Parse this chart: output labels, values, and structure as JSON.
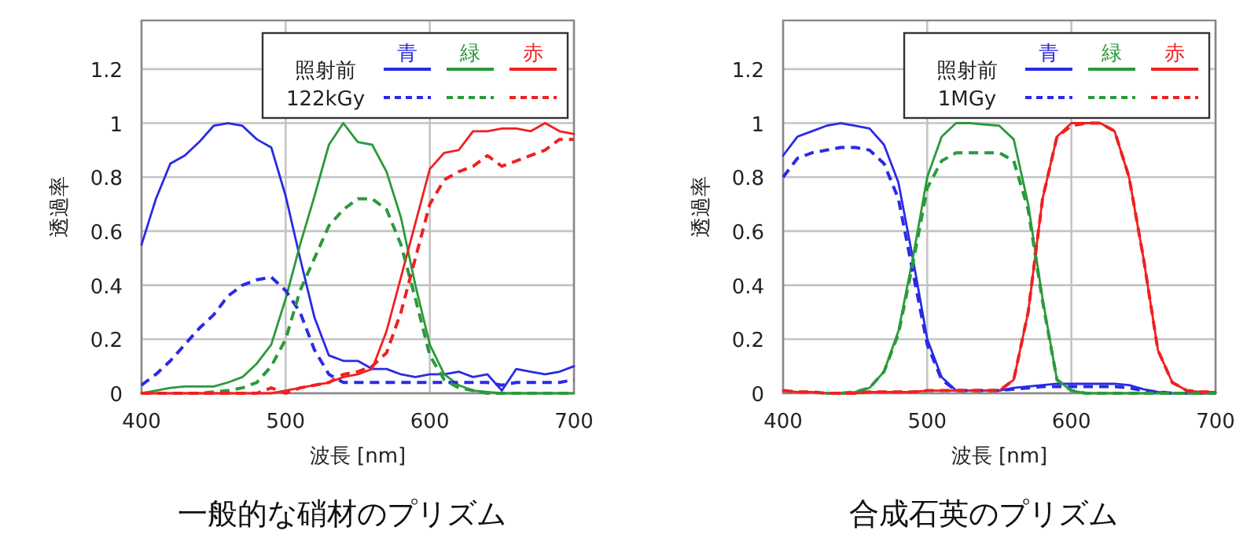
{
  "chart_data": [
    {
      "type": "line",
      "title": "一般的な硝材のプリズム",
      "xlabel": "波長 [nm]",
      "ylabel": "透過率",
      "xlim": [
        400,
        700
      ],
      "ylim": [
        0,
        1.38
      ],
      "xticks": [
        400,
        500,
        600,
        700
      ],
      "yticks": [
        0,
        0.2,
        0.4,
        0.6,
        0.8,
        1,
        1.2
      ],
      "grid": true,
      "legend": "top right",
      "annotations": [
        "照射前",
        "122kGy"
      ],
      "x": [
        400,
        410,
        420,
        430,
        440,
        450,
        460,
        470,
        480,
        490,
        500,
        510,
        520,
        530,
        540,
        550,
        560,
        570,
        580,
        590,
        600,
        610,
        620,
        630,
        640,
        650,
        660,
        670,
        680,
        690,
        700
      ],
      "series": [
        {
          "name": "青",
          "color": "#2a2ae6",
          "line_style": "solid",
          "values": [
            0.55,
            0.72,
            0.85,
            0.88,
            0.93,
            0.99,
            1.0,
            0.99,
            0.94,
            0.91,
            0.73,
            0.5,
            0.28,
            0.14,
            0.12,
            0.12,
            0.09,
            0.09,
            0.07,
            0.06,
            0.07,
            0.07,
            0.08,
            0.06,
            0.07,
            0.01,
            0.09,
            0.08,
            0.07,
            0.08,
            0.1
          ]
        },
        {
          "name": "緑",
          "color": "#2a9a3a",
          "line_style": "solid",
          "values": [
            0,
            0.01,
            0.02,
            0.025,
            0.025,
            0.025,
            0.04,
            0.06,
            0.11,
            0.18,
            0.35,
            0.55,
            0.73,
            0.92,
            1.0,
            0.93,
            0.92,
            0.82,
            0.65,
            0.4,
            0.18,
            0.07,
            0.03,
            0.01,
            0.005,
            0,
            0,
            0,
            0,
            0,
            0
          ]
        },
        {
          "name": "赤",
          "color": "#f02020",
          "line_style": "solid",
          "values": [
            0,
            0,
            0,
            0,
            0,
            0,
            0,
            0,
            0,
            0,
            0.01,
            0.02,
            0.03,
            0.04,
            0.06,
            0.07,
            0.09,
            0.23,
            0.43,
            0.63,
            0.83,
            0.89,
            0.9,
            0.97,
            0.97,
            0.98,
            0.98,
            0.97,
            1.0,
            0.97,
            0.96
          ]
        },
        {
          "color": "#2a2ae6",
          "line_style": "dashed",
          "values": [
            0.03,
            0.07,
            0.12,
            0.18,
            0.24,
            0.29,
            0.36,
            0.4,
            0.42,
            0.43,
            0.38,
            0.3,
            0.16,
            0.07,
            0.04,
            0.04,
            0.04,
            0.04,
            0.04,
            0.04,
            0.04,
            0.04,
            0.04,
            0.04,
            0.04,
            0.03,
            0.04,
            0.04,
            0.04,
            0.04,
            0.05
          ]
        },
        {
          "color": "#2a9a3a",
          "line_style": "dashed",
          "values": [
            0,
            0,
            0,
            0,
            0,
            0.005,
            0.01,
            0.02,
            0.04,
            0.1,
            0.2,
            0.38,
            0.5,
            0.62,
            0.68,
            0.72,
            0.72,
            0.68,
            0.55,
            0.35,
            0.14,
            0.05,
            0.02,
            0.01,
            0,
            0,
            0,
            0,
            0,
            0,
            0
          ]
        },
        {
          "color": "#f02020",
          "line_style": "dashed",
          "values": [
            0,
            0,
            0,
            0,
            0,
            0,
            0,
            0,
            0,
            0.02,
            0,
            0.02,
            0.03,
            0.04,
            0.07,
            0.08,
            0.1,
            0.15,
            0.3,
            0.5,
            0.7,
            0.79,
            0.82,
            0.84,
            0.88,
            0.84,
            0.86,
            0.88,
            0.9,
            0.94,
            0.94
          ]
        }
      ]
    },
    {
      "type": "line",
      "title": "合成石英のプリズム",
      "xlabel": "波長 [nm]",
      "ylabel": "透過率",
      "xlim": [
        400,
        700
      ],
      "ylim": [
        0,
        1.38
      ],
      "xticks": [
        400,
        500,
        600,
        700
      ],
      "yticks": [
        0,
        0.2,
        0.4,
        0.6,
        0.8,
        1,
        1.2
      ],
      "grid": true,
      "legend": "top right",
      "annotations": [
        "照射前",
        "1MGy"
      ],
      "x": [
        400,
        410,
        420,
        430,
        440,
        450,
        460,
        470,
        480,
        490,
        500,
        510,
        520,
        530,
        540,
        550,
        560,
        570,
        580,
        590,
        600,
        610,
        620,
        630,
        640,
        650,
        660,
        670,
        680,
        690,
        700
      ],
      "series": [
        {
          "name": "青",
          "color": "#2a2ae6",
          "line_style": "solid",
          "values": [
            0.88,
            0.95,
            0.97,
            0.99,
            1.0,
            0.99,
            0.98,
            0.92,
            0.78,
            0.5,
            0.2,
            0.06,
            0.01,
            0.01,
            0.01,
            0.01,
            0.02,
            0.025,
            0.03,
            0.035,
            0.035,
            0.035,
            0.035,
            0.035,
            0.03,
            0.015,
            0.005,
            0,
            0,
            0,
            0
          ]
        },
        {
          "name": "緑",
          "color": "#2a9a3a",
          "line_style": "solid",
          "values": [
            null,
            null,
            null,
            0,
            0,
            0.005,
            0.02,
            0.08,
            0.23,
            0.5,
            0.8,
            0.95,
            1.0,
            1.0,
            0.995,
            0.99,
            0.94,
            0.7,
            0.35,
            0.05,
            0.01,
            0,
            0,
            0,
            0,
            0,
            0,
            0,
            0,
            0,
            0
          ]
        },
        {
          "name": "赤",
          "color": "#f02020",
          "line_style": "solid",
          "values": [
            0.01,
            0.005,
            0.005,
            0,
            0,
            0,
            0.005,
            0.005,
            0.005,
            0.005,
            0.01,
            0.01,
            0.01,
            0.01,
            0.01,
            0.01,
            0.05,
            0.3,
            0.72,
            0.95,
            1.0,
            1.0,
            1.0,
            0.97,
            0.8,
            0.5,
            0.16,
            0.04,
            0.01,
            0.005,
            0.005
          ]
        },
        {
          "color": "#2a2ae6",
          "line_style": "dashed",
          "values": [
            0.8,
            0.87,
            0.89,
            0.9,
            0.91,
            0.91,
            0.9,
            0.85,
            0.72,
            0.45,
            0.18,
            0.05,
            0.01,
            0.01,
            0.01,
            0.01,
            0.015,
            0.02,
            0.025,
            0.025,
            0.025,
            0.025,
            0.025,
            0.025,
            0.02,
            0.01,
            0.005,
            0,
            0,
            0,
            0
          ]
        },
        {
          "color": "#2a9a3a",
          "line_style": "dashed",
          "values": [
            null,
            null,
            null,
            0,
            0,
            0.005,
            0.02,
            0.08,
            0.22,
            0.48,
            0.76,
            0.86,
            0.89,
            0.89,
            0.89,
            0.89,
            0.86,
            0.68,
            0.34,
            0.05,
            0.01,
            0,
            0,
            0,
            0,
            0,
            0,
            0,
            0,
            0,
            0
          ]
        },
        {
          "color": "#f02020",
          "line_style": "dashed",
          "values": [
            0.01,
            0.005,
            0.005,
            0,
            0,
            0,
            0.005,
            0.005,
            0.005,
            0.005,
            0.01,
            0.01,
            0.01,
            0.01,
            0.01,
            0.01,
            0.05,
            0.3,
            0.72,
            0.95,
            0.99,
            1.0,
            1.0,
            0.97,
            0.8,
            0.5,
            0.16,
            0.04,
            0.01,
            0.005,
            0.005
          ]
        }
      ]
    }
  ]
}
